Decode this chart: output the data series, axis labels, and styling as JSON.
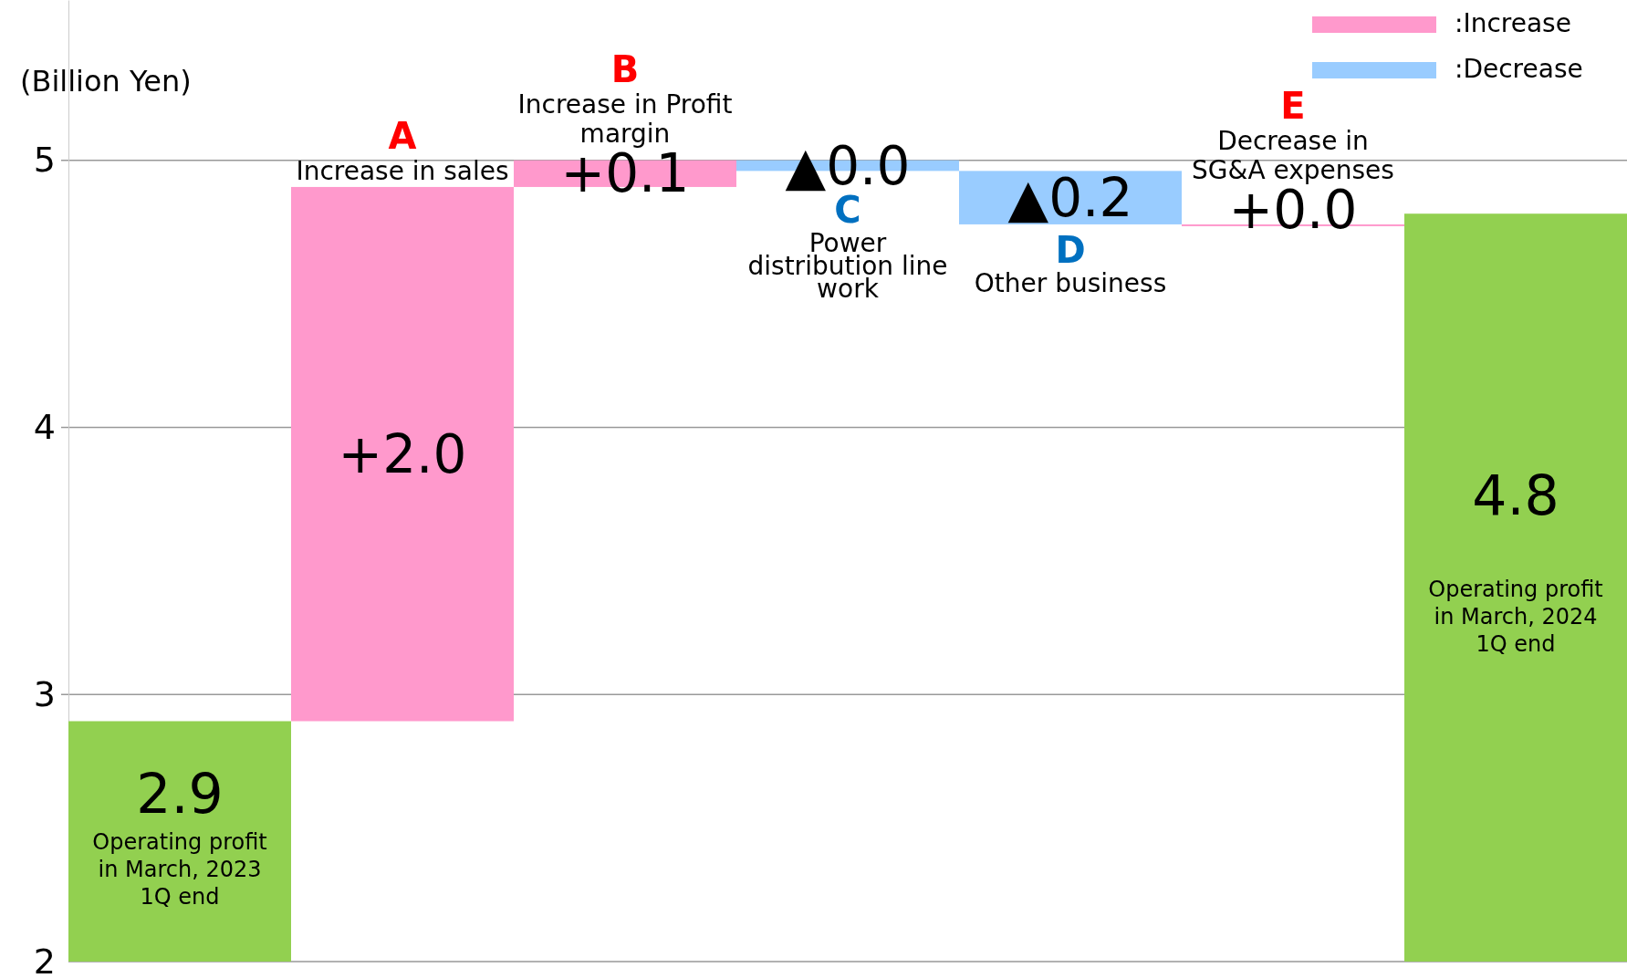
{
  "chart_data": {
    "type": "bar",
    "ylabel": "(Billion Yen)",
    "categories": [
      "Operating profit in March, 2023 1Q end",
      "Increase in sales",
      "Increase in Profit margin",
      "Power distribution line work",
      "Other business",
      "Decrease in SG&A expenses",
      "Operating profit in March, 2024 1Q end"
    ],
    "base": [
      0,
      2.9,
      4.9,
      5.0,
      4.96,
      4.76,
      0
    ],
    "values": [
      2.9,
      2.0,
      0.1,
      -0.04,
      -0.2,
      0.0,
      4.8
    ],
    "colors": [
      "#92d050",
      "#ff99cc",
      "#ff99cc",
      "#99ccff",
      "#99ccff",
      "#ff99cc",
      "#92d050"
    ],
    "value_labels": [
      "2.9",
      "+2.0",
      "+0.1",
      "▲0.0",
      "▲0.2",
      "+0.0",
      "4.8"
    ],
    "annotations": [
      "A",
      "B",
      "C",
      "D",
      "E",
      ":Increase",
      ":Decrease"
    ],
    "ylim": [
      2,
      5.6
    ],
    "yticks": [
      2,
      3,
      4,
      5
    ],
    "grid": "y"
  }
}
